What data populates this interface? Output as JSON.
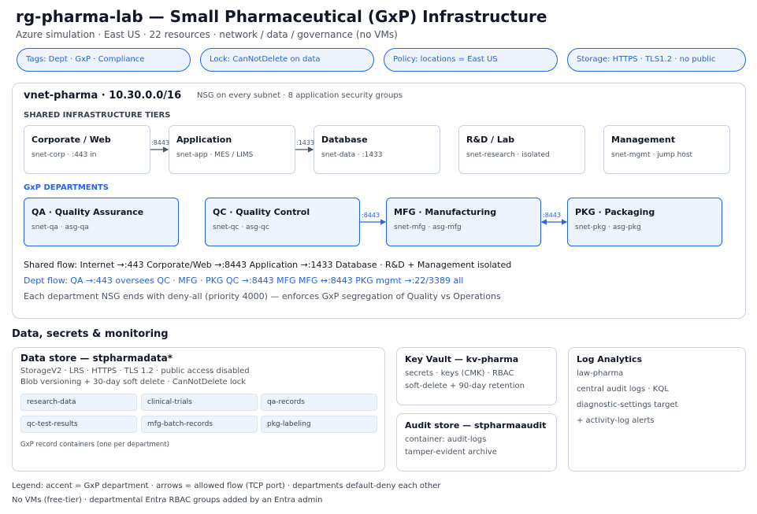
{
  "header": {
    "title": "rg-pharma-lab — Small Pharmaceutical (GxP) Infrastructure",
    "subtitle": "Azure simulation · East US · 22 resources · network / data / governance (no VMs)"
  },
  "tags": [
    "Tags: Dept · GxP · Compliance",
    "Lock: CanNotDelete on data",
    "Policy: locations = East US",
    "Storage: HTTPS · TLS1.2 · no public"
  ],
  "vnet": {
    "title": "vnet-pharma · 10.30.0.0/16",
    "note": "NSG on every subnet · 8 application security groups",
    "tiers_label": "SHARED INFRASTRUCTURE TIERS",
    "tiers": [
      {
        "name": "Corporate / Web",
        "sub": "snet-corp · :443 in"
      },
      {
        "name": "Application",
        "sub": "snet-app · MES / LIMS"
      },
      {
        "name": "Database",
        "sub": "snet-data · :1433"
      },
      {
        "name": "R&D / Lab",
        "sub": "snet-research · isolated"
      },
      {
        "name": "Management",
        "sub": "snet-mgmt · jump host"
      }
    ],
    "tier_ports": [
      ":8443",
      ":1433"
    ],
    "departments_label": "GxP DEPARTMENTS",
    "departments": [
      {
        "name": "QA · Quality Assurance",
        "sub": "snet-qa · asg-qa"
      },
      {
        "name": "QC · Quality Control",
        "sub": "snet-qc · asg-qc"
      },
      {
        "name": "MFG · Manufacturing",
        "sub": "snet-mfg · asg-mfg"
      },
      {
        "name": "PKG · Packaging",
        "sub": "snet-pkg · asg-pkg"
      }
    ],
    "dept_ports": [
      ":8443",
      ":8443"
    ],
    "shared_flow": "Shared flow: Internet →:443 Corporate/Web →:8443 Application →:1433 Database · R&D + Management isolated",
    "dept_flow": "Dept flow: QA →:443 oversees QC · MFG · PKG QC →:8443 MFG MFG ↔:8443 PKG mgmt →:22/3389 all",
    "nsg_note": "Each department NSG ends with deny-all (priority 4000) — enforces GxP segregation of Quality vs Operations"
  },
  "data_section": {
    "heading": "Data, secrets & monitoring",
    "storage": {
      "title": "Data store — stpharmadata*",
      "lines": [
        "StorageV2 · LRS · HTTPS · TLS 1.2 · public access disabled",
        "Blob versioning + 30-day soft delete · CanNotDelete lock"
      ],
      "containers": [
        "research-data",
        "clinical-trials",
        "qa-records",
        "qc-test-results",
        "mfg-batch-records",
        "pkg-labeling"
      ],
      "note": "GxP record containers (one per department)"
    },
    "key_vault": {
      "title": "Key Vault — kv-pharma",
      "lines": [
        "secrets · keys (CMK) · RBAC",
        "soft-delete + 90-day retention"
      ]
    },
    "audit_store": {
      "title": "Audit store — stpharmaaudit",
      "lines": [
        "container: audit-logs",
        "tamper-evident archive"
      ]
    },
    "log_analytics": {
      "title": "Log Analytics",
      "lines": [
        "law-pharma",
        "central audit logs · KQL",
        "diagnostic-settings target",
        "+ activity-log alerts"
      ]
    }
  },
  "legend": [
    "Legend: accent = GxP department · arrows = allowed flow (TCP port) · departments default-deny each other",
    "No VMs (free-tier) · departmental Entra RBAC groups added by an Entra admin"
  ],
  "colors": {
    "accent": "#2563eb",
    "accent_fill": "#eef4fd",
    "neutral_border": "#cbd5e1",
    "tier_arrow": "#475569",
    "text_dark": "#111827",
    "text_muted": "#4b5563"
  }
}
